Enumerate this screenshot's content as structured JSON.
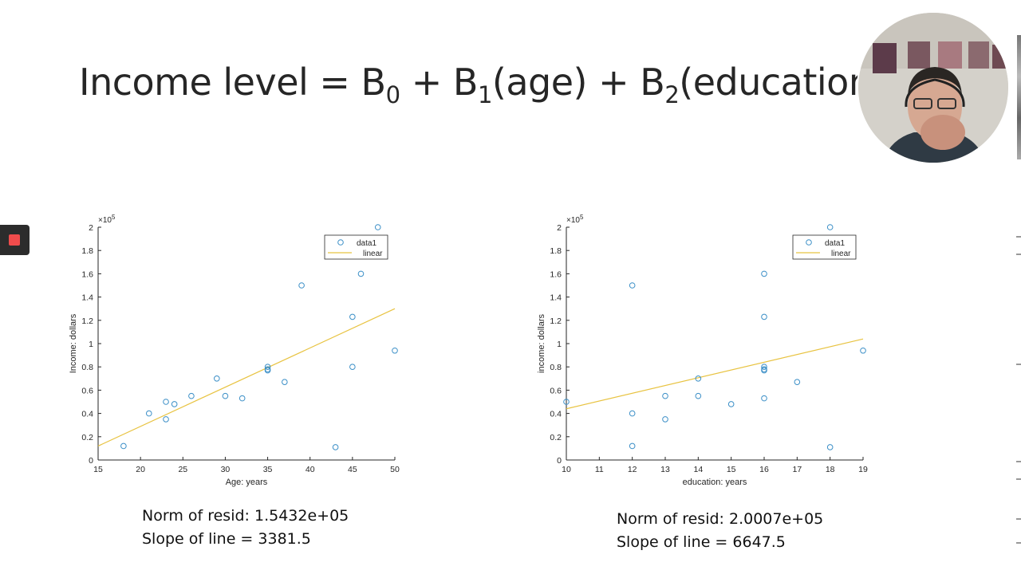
{
  "slide": {
    "title_text": "Income level = B",
    "title_sub0": "0",
    "title_plus1": " + B",
    "title_sub1": "1",
    "title_age": "(age) + B",
    "title_sub2": "2",
    "title_edu": "(education"
  },
  "webcam": {
    "icon": "webcam-presenter"
  },
  "record_button": {
    "icon": "stop-square-icon",
    "color": "#f04c4c"
  },
  "colors": {
    "marker": "#3b8fc7",
    "fit": "#e8c341",
    "axis": "#262626",
    "text": "#262626"
  },
  "left_stats": {
    "norm_text": "Norm of resid: 1.5432e+05",
    "slope_text": "Slope of line = 3381.5"
  },
  "right_stats": {
    "norm_text": "Norm of resid: 2.0007e+05",
    "slope_text": "Slope of line = 6647.5"
  },
  "chart_data": [
    {
      "type": "scatter",
      "title": "",
      "xlabel": "Age: years",
      "ylabel": "Income: dollars",
      "y_exponent": "×10",
      "y_exponent_power": "5",
      "xlim": [
        15,
        50
      ],
      "ylim": [
        0,
        2
      ],
      "xticks": [
        15,
        20,
        25,
        30,
        35,
        40,
        45,
        50
      ],
      "yticks": [
        0,
        0.2,
        0.4,
        0.6,
        0.8,
        1,
        1.2,
        1.4,
        1.6,
        1.8,
        2
      ],
      "grid": false,
      "legend_position": "top-right",
      "series": [
        {
          "name": "data1",
          "marker": "circle",
          "points": [
            [
              18,
              0.12
            ],
            [
              21,
              0.4
            ],
            [
              23,
              0.5
            ],
            [
              23,
              0.35
            ],
            [
              24,
              0.48
            ],
            [
              26,
              0.55
            ],
            [
              29,
              0.7
            ],
            [
              30,
              0.55
            ],
            [
              32,
              0.53
            ],
            [
              35,
              0.8
            ],
            [
              35,
              0.77
            ],
            [
              35,
              0.78
            ],
            [
              37,
              0.67
            ],
            [
              39,
              1.5
            ],
            [
              43,
              0.11
            ],
            [
              45,
              1.23
            ],
            [
              45,
              0.8
            ],
            [
              46,
              1.6
            ],
            [
              48,
              2.0
            ],
            [
              50,
              0.94
            ]
          ]
        },
        {
          "name": "linear",
          "line": [
            [
              15,
              0.12
            ],
            [
              50,
              1.3
            ]
          ]
        }
      ]
    },
    {
      "type": "scatter",
      "title": "",
      "xlabel": "education: years",
      "ylabel": "income: dollars",
      "y_exponent": "×10",
      "y_exponent_power": "5",
      "xlim": [
        10,
        19
      ],
      "ylim": [
        0,
        2
      ],
      "xticks": [
        10,
        11,
        12,
        13,
        14,
        15,
        16,
        17,
        18,
        19
      ],
      "yticks": [
        0,
        0.2,
        0.4,
        0.6,
        0.8,
        1,
        1.2,
        1.4,
        1.6,
        1.8,
        2
      ],
      "grid": false,
      "legend_position": "top-right",
      "series": [
        {
          "name": "data1",
          "marker": "circle",
          "points": [
            [
              10,
              0.5
            ],
            [
              12,
              1.5
            ],
            [
              12,
              0.4
            ],
            [
              12,
              0.12
            ],
            [
              13,
              0.55
            ],
            [
              13,
              0.35
            ],
            [
              14,
              0.7
            ],
            [
              14,
              0.55
            ],
            [
              15,
              0.48
            ],
            [
              16,
              1.6
            ],
            [
              16,
              1.23
            ],
            [
              16,
              0.8
            ],
            [
              16,
              0.78
            ],
            [
              16,
              0.77
            ],
            [
              16,
              0.53
            ],
            [
              17,
              0.67
            ],
            [
              18,
              2.0
            ],
            [
              18,
              0.11
            ],
            [
              19,
              0.94
            ]
          ]
        },
        {
          "name": "linear",
          "line": [
            [
              10,
              0.44
            ],
            [
              19,
              1.04
            ]
          ]
        }
      ]
    }
  ]
}
